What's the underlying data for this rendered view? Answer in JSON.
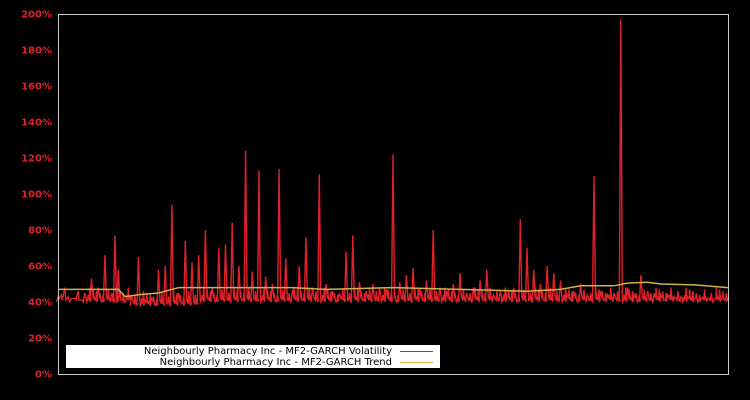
{
  "chart_data": {
    "type": "line",
    "title": "",
    "xlabel": "",
    "ylabel": "",
    "ylim": [
      0,
      200
    ],
    "y_ticks": [
      "0%",
      "20%",
      "40%",
      "60%",
      "80%",
      "100%",
      "120%",
      "140%",
      "160%",
      "180%",
      "200%"
    ],
    "x_ticks": [],
    "grid": false,
    "legend_position": "lower-left",
    "background": "#000000",
    "colors": {
      "volatility": "#e0202a",
      "trend": "#d4b04a",
      "axis": "#cccccc",
      "tick_label": "#e0202a"
    },
    "series": [
      {
        "name": "Neighbourly Pharmacy Inc - MF2-GARCH Volatility",
        "color": "#e0202a",
        "x_frac": [
          0.0,
          0.02,
          0.04,
          0.05,
          0.06,
          0.07,
          0.08,
          0.085,
          0.09,
          0.1,
          0.11,
          0.12,
          0.13,
          0.14,
          0.15,
          0.16,
          0.17,
          0.18,
          0.19,
          0.2,
          0.21,
          0.22,
          0.23,
          0.24,
          0.25,
          0.26,
          0.27,
          0.28,
          0.29,
          0.3,
          0.31,
          0.32,
          0.33,
          0.34,
          0.35,
          0.36,
          0.37,
          0.38,
          0.39,
          0.4,
          0.41,
          0.42,
          0.43,
          0.44,
          0.45,
          0.46,
          0.47,
          0.48,
          0.49,
          0.5,
          0.51,
          0.52,
          0.53,
          0.54,
          0.55,
          0.56,
          0.57,
          0.58,
          0.59,
          0.6,
          0.61,
          0.62,
          0.63,
          0.64,
          0.65,
          0.66,
          0.67,
          0.68,
          0.69,
          0.7,
          0.71,
          0.72,
          0.73,
          0.74,
          0.75,
          0.76,
          0.77,
          0.78,
          0.79,
          0.8,
          0.81,
          0.82,
          0.83,
          0.84,
          0.85,
          0.86,
          0.87,
          0.88,
          0.89,
          0.9,
          0.91,
          0.92,
          0.93,
          0.94,
          0.95,
          0.96,
          0.97,
          0.98,
          0.99,
          1.0
        ],
        "values": [
          43,
          42,
          45,
          53,
          48,
          66,
          45,
          77,
          58,
          40,
          44,
          65,
          41,
          42,
          58,
          60,
          94,
          45,
          74,
          62,
          66,
          80,
          48,
          70,
          72,
          84,
          60,
          124,
          57,
          113,
          54,
          50,
          114,
          64,
          47,
          60,
          76,
          48,
          111,
          50,
          46,
          45,
          68,
          77,
          51,
          46,
          50,
          48,
          47,
          122,
          51,
          55,
          59,
          48,
          52,
          80,
          48,
          46,
          50,
          56,
          45,
          48,
          52,
          58,
          44,
          46,
          44,
          48,
          86,
          70,
          58,
          50,
          60,
          56,
          52,
          44,
          46,
          50,
          44,
          110,
          46,
          44,
          45,
          197,
          48,
          44,
          55,
          46,
          45,
          44,
          44,
          43,
          43,
          43,
          42,
          42,
          42,
          42,
          42,
          42
        ]
      },
      {
        "name": "Neighbourly Pharmacy Inc - MF2-GARCH Trend",
        "color": "#d4b04a",
        "x_frac": [
          0.0,
          0.09,
          0.1,
          0.12,
          0.15,
          0.18,
          0.2,
          0.25,
          0.3,
          0.35,
          0.4,
          0.45,
          0.5,
          0.55,
          0.6,
          0.65,
          0.7,
          0.75,
          0.78,
          0.8,
          0.83,
          0.85,
          0.88,
          0.9,
          0.95,
          1.0
        ],
        "values": [
          47,
          47,
          43,
          44,
          45,
          48,
          48,
          48,
          48,
          48,
          47,
          47.5,
          48,
          47.5,
          47,
          46.5,
          46,
          47,
          49,
          49,
          49,
          50.5,
          51,
          50,
          49.5,
          48
        ]
      }
    ]
  },
  "legend": {
    "items": [
      {
        "label": "Neighbourly Pharmacy Inc - MF2-GARCH Volatility",
        "color": "#e0202a"
      },
      {
        "label": "Neighbourly Pharmacy Inc - MF2-GARCH Trend",
        "color": "#d4b04a"
      }
    ]
  }
}
